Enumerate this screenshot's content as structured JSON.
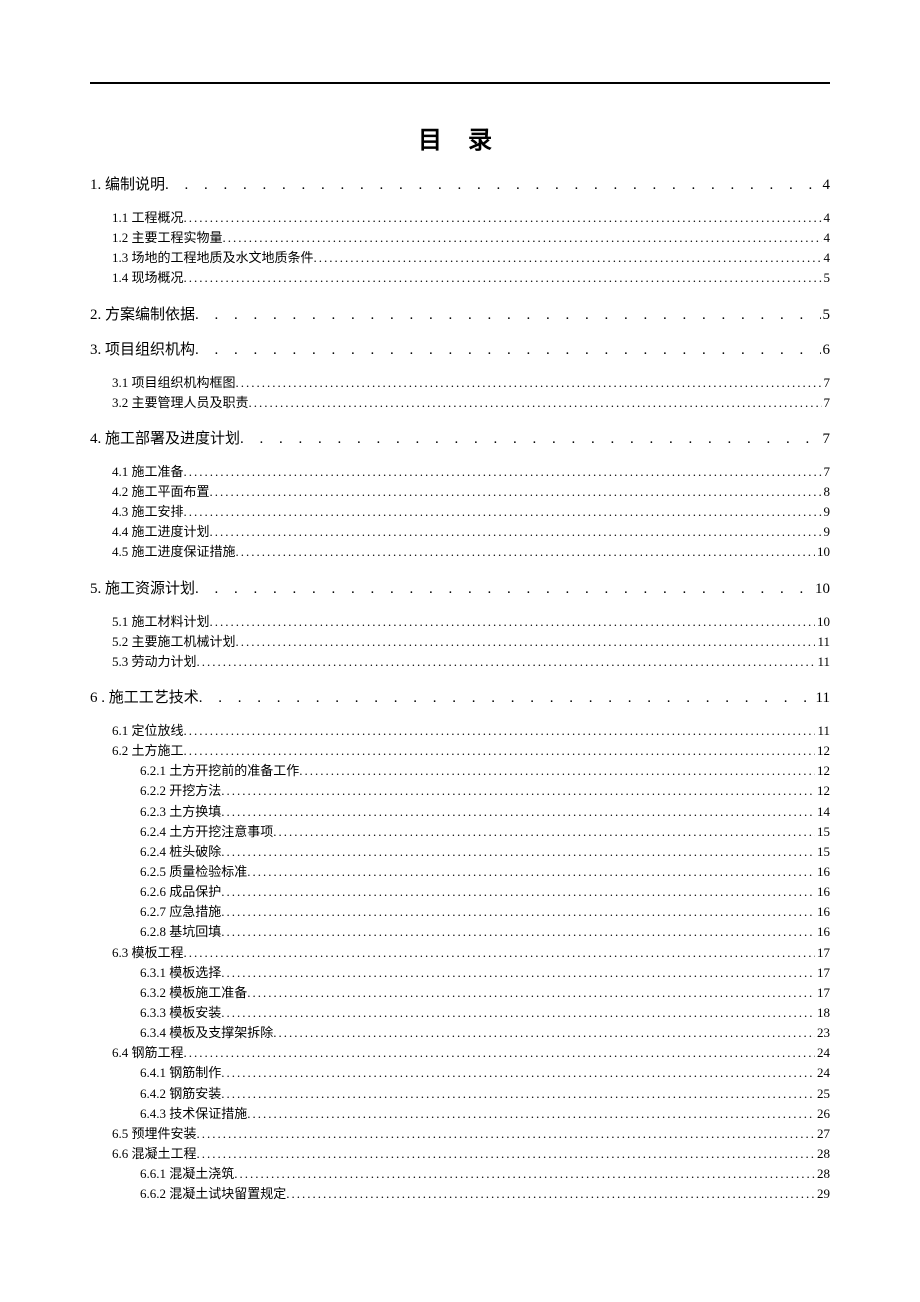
{
  "title": "目 录",
  "leader1": " . . . . . . . . . . . . . . . . . . . . . . . . . . . . . . . . . . . . . . . . . . . . . . . . . . . . . . . . . . . . . . . . . . . . . . . . . . . . . . . . . . . . . . . . . . . .",
  "leader2": "............................................................................................................................................................................................................................................",
  "entries": [
    {
      "level": 1,
      "label": "1. 编制说明",
      "page": "4"
    },
    {
      "level": 2,
      "label": "1.1 工程概况",
      "page": "4"
    },
    {
      "level": 2,
      "label": "1.2 主要工程实物量",
      "page": "4"
    },
    {
      "level": 2,
      "label": "1.3 场地的工程地质及水文地质条件",
      "page": "4"
    },
    {
      "level": 2,
      "label": "1.4 现场概况",
      "page": "5"
    },
    {
      "level": 1,
      "label": "2. 方案编制依据",
      "page": "5"
    },
    {
      "level": 1,
      "label": "3. 项目组织机构",
      "page": "6"
    },
    {
      "level": 2,
      "label": "3.1 项目组织机构框图",
      "page": "7"
    },
    {
      "level": 2,
      "label": "3.2 主要管理人员及职责",
      "page": "7"
    },
    {
      "level": 1,
      "label": "4. 施工部署及进度计划",
      "page": "7"
    },
    {
      "level": 2,
      "label": "4.1 施工准备",
      "page": "7"
    },
    {
      "level": 2,
      "label": "4.2 施工平面布置",
      "page": "8"
    },
    {
      "level": 2,
      "label": "4.3 施工安排",
      "page": "9"
    },
    {
      "level": 2,
      "label": "4.4 施工进度计划",
      "page": "9"
    },
    {
      "level": 2,
      "label": "4.5 施工进度保证措施",
      "page": "10"
    },
    {
      "level": 1,
      "label": "5. 施工资源计划",
      "page": "10"
    },
    {
      "level": 2,
      "label": "5.1 施工材料计划",
      "page": "10"
    },
    {
      "level": 2,
      "label": "5.2 主要施工机械计划",
      "page": "11"
    },
    {
      "level": 2,
      "label": "5.3 劳动力计划",
      "page": "11"
    },
    {
      "level": 1,
      "label": "6 . 施工工艺技术",
      "page": "11"
    },
    {
      "level": 2,
      "label": "6.1 定位放线",
      "page": "11"
    },
    {
      "level": 2,
      "label": "6.2 土方施工",
      "page": "12"
    },
    {
      "level": 3,
      "label": "6.2.1 土方开挖前的准备工作",
      "page": "12"
    },
    {
      "level": 3,
      "label": "6.2.2 开挖方法",
      "page": "12"
    },
    {
      "level": 3,
      "label": "6.2.3 土方换填",
      "page": "14"
    },
    {
      "level": 3,
      "label": "6.2.4 土方开挖注意事项",
      "page": "15"
    },
    {
      "level": 3,
      "label": "6.2.4 桩头破除",
      "page": "15"
    },
    {
      "level": 3,
      "label": "6.2.5 质量检验标准",
      "page": "16"
    },
    {
      "level": 3,
      "label": "6.2.6 成品保护",
      "page": "16"
    },
    {
      "level": 3,
      "label": "6.2.7 应急措施",
      "page": "16"
    },
    {
      "level": 3,
      "label": "6.2.8 基坑回填",
      "page": "16"
    },
    {
      "level": 2,
      "label": "6.3 模板工程",
      "page": "17"
    },
    {
      "level": 3,
      "label": "6.3.1 模板选择",
      "page": "17"
    },
    {
      "level": 3,
      "label": "6.3.2 模板施工准备",
      "page": "17"
    },
    {
      "level": 3,
      "label": "6.3.3 模板安装",
      "page": "18"
    },
    {
      "level": 3,
      "label": "6.3.4 模板及支撑架拆除",
      "page": "23"
    },
    {
      "level": 2,
      "label": "6.4 钢筋工程",
      "page": "24"
    },
    {
      "level": 3,
      "label": "6.4.1 钢筋制作",
      "page": "24"
    },
    {
      "level": 3,
      "label": "6.4.2 钢筋安装",
      "page": "25"
    },
    {
      "level": 3,
      "label": "6.4.3 技术保证措施",
      "page": "26"
    },
    {
      "level": 2,
      "label": "6.5 预埋件安装",
      "page": "27"
    },
    {
      "level": 2,
      "label": "6.6 混凝土工程",
      "page": "28"
    },
    {
      "level": 3,
      "label": "6.6.1 混凝土浇筑",
      "page": "28"
    },
    {
      "level": 3,
      "label": "6.6.2 混凝土试块留置规定",
      "page": "29"
    }
  ]
}
